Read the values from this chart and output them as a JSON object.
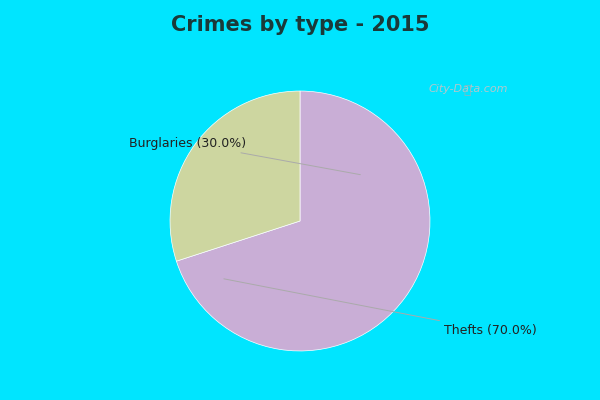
{
  "title": "Crimes by type - 2015",
  "slices": [
    {
      "label": "Thefts (70.0%)",
      "value": 70.0,
      "color": "#c9aed6"
    },
    {
      "label": "Burglaries (30.0%)",
      "value": 30.0,
      "color": "#cdd6a0"
    }
  ],
  "cyan_color": "#00e5ff",
  "bg_color": "#e8f5e9",
  "title_fontsize": 15,
  "label_fontsize": 9,
  "watermark": "City-Data.com",
  "startangle": 90
}
